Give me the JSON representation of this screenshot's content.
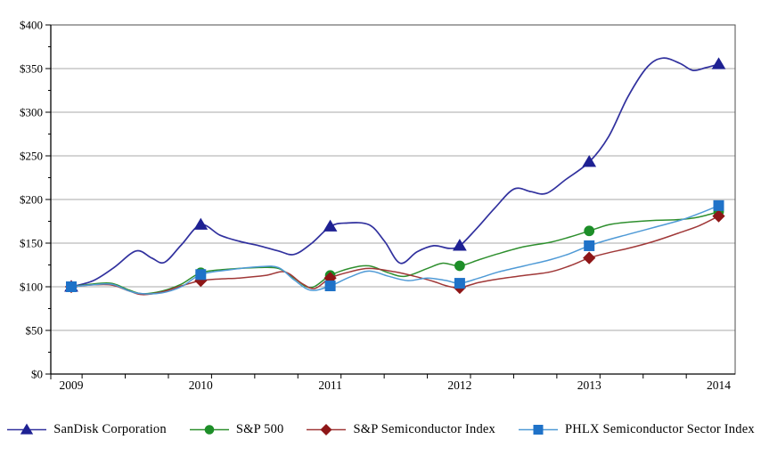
{
  "figure": {
    "background": "#ffffff",
    "kind": "5-year cumulative total return comparison line chart"
  },
  "colors": {
    "gridline": "#a8a8a8",
    "plot_border": "#4d4d4d",
    "axis": "#000000",
    "text": "#000000"
  },
  "chart_data": {
    "type": "line",
    "title": "",
    "xlabel": "",
    "ylabel": "",
    "categories": [
      "2009",
      "2010",
      "2011",
      "2012",
      "2013",
      "2014"
    ],
    "x_axis": {
      "tick_labels": [
        "2009",
        "2010",
        "2011",
        "2012",
        "2013",
        "2014"
      ],
      "minor_ticks": "every 4 months"
    },
    "y_axis": {
      "tick_labels": [
        "$0",
        "$50",
        "$100",
        "$150",
        "$200",
        "$250",
        "$300",
        "$350",
        "$400"
      ],
      "min": 0,
      "max": 400,
      "major_interval": 50,
      "minor_tick_interval": 25,
      "unit": "$"
    },
    "grid": "horizontal major gridlines",
    "legend_position": "bottom",
    "series": [
      {
        "name": "SanDisk Corporation",
        "marker": "triangle",
        "line_color": "#31319e",
        "marker_color": "#1e2193",
        "values": [
          100,
          171,
          169,
          147,
          243,
          355
        ],
        "curve_points": [
          [
            0,
            100
          ],
          [
            0.17,
            107
          ],
          [
            0.33,
            122
          ],
          [
            0.5,
            141
          ],
          [
            0.62,
            133
          ],
          [
            0.72,
            128
          ],
          [
            0.85,
            148
          ],
          [
            1,
            171
          ],
          [
            1.15,
            159
          ],
          [
            1.3,
            152
          ],
          [
            1.45,
            147
          ],
          [
            1.6,
            141
          ],
          [
            1.72,
            137
          ],
          [
            1.85,
            149
          ],
          [
            2,
            169
          ],
          [
            2.12,
            173
          ],
          [
            2.3,
            171
          ],
          [
            2.42,
            152
          ],
          [
            2.54,
            127
          ],
          [
            2.67,
            140
          ],
          [
            2.8,
            147
          ],
          [
            2.92,
            144
          ],
          [
            3,
            147
          ],
          [
            3.12,
            165
          ],
          [
            3.27,
            190
          ],
          [
            3.42,
            212
          ],
          [
            3.55,
            209
          ],
          [
            3.67,
            207
          ],
          [
            3.82,
            223
          ],
          [
            4,
            243
          ],
          [
            4.15,
            272
          ],
          [
            4.3,
            318
          ],
          [
            4.45,
            352
          ],
          [
            4.57,
            362
          ],
          [
            4.7,
            356
          ],
          [
            4.8,
            348
          ],
          [
            4.9,
            351
          ],
          [
            5,
            355
          ]
        ]
      },
      {
        "name": "S&P 500",
        "marker": "circle",
        "line_color": "#2e8f2e",
        "marker_color": "#1d8e28",
        "values": [
          100,
          116,
          113,
          124,
          164,
          186
        ],
        "curve_points": [
          [
            0,
            100
          ],
          [
            0.15,
            103
          ],
          [
            0.31,
            104
          ],
          [
            0.45,
            96
          ],
          [
            0.55,
            92
          ],
          [
            0.7,
            95
          ],
          [
            0.85,
            103
          ],
          [
            1,
            116
          ],
          [
            1.2,
            120
          ],
          [
            1.45,
            122
          ],
          [
            1.6,
            121
          ],
          [
            1.72,
            110
          ],
          [
            1.85,
            99
          ],
          [
            2,
            113
          ],
          [
            2.15,
            121
          ],
          [
            2.3,
            124
          ],
          [
            2.45,
            116
          ],
          [
            2.58,
            112
          ],
          [
            2.75,
            121
          ],
          [
            2.87,
            127
          ],
          [
            3,
            124
          ],
          [
            3.15,
            131
          ],
          [
            3.3,
            138
          ],
          [
            3.5,
            146
          ],
          [
            3.7,
            151
          ],
          [
            3.85,
            157
          ],
          [
            4,
            164
          ],
          [
            4.15,
            171
          ],
          [
            4.3,
            174
          ],
          [
            4.5,
            176
          ],
          [
            4.7,
            177
          ],
          [
            4.85,
            180
          ],
          [
            5,
            186
          ]
        ]
      },
      {
        "name": "S&P Semiconductor Index",
        "marker": "diamond",
        "line_color": "#a03838",
        "marker_color": "#8e1617",
        "values": [
          100,
          107,
          110,
          99,
          133,
          181
        ],
        "curve_points": [
          [
            0,
            100
          ],
          [
            0.15,
            102
          ],
          [
            0.31,
            102
          ],
          [
            0.45,
            95
          ],
          [
            0.55,
            91
          ],
          [
            0.7,
            94
          ],
          [
            0.85,
            101
          ],
          [
            1,
            107
          ],
          [
            1.15,
            109
          ],
          [
            1.3,
            110
          ],
          [
            1.5,
            113
          ],
          [
            1.65,
            117
          ],
          [
            1.78,
            104
          ],
          [
            1.88,
            98
          ],
          [
            2,
            110
          ],
          [
            2.15,
            117
          ],
          [
            2.3,
            121
          ],
          [
            2.5,
            117
          ],
          [
            2.65,
            112
          ],
          [
            2.8,
            106
          ],
          [
            2.9,
            101
          ],
          [
            3,
            99
          ],
          [
            3.15,
            105
          ],
          [
            3.3,
            109
          ],
          [
            3.5,
            113
          ],
          [
            3.7,
            117
          ],
          [
            3.85,
            124
          ],
          [
            4,
            133
          ],
          [
            4.15,
            139
          ],
          [
            4.3,
            144
          ],
          [
            4.5,
            152
          ],
          [
            4.7,
            162
          ],
          [
            4.85,
            170
          ],
          [
            5,
            181
          ]
        ]
      },
      {
        "name": "PHLX Semiconductor Sector Index",
        "marker": "square",
        "line_color": "#4f9ad6",
        "marker_color": "#1f72c8",
        "values": [
          100,
          114,
          101,
          104,
          147,
          193
        ],
        "curve_points": [
          [
            0,
            100
          ],
          [
            0.15,
            102
          ],
          [
            0.31,
            103
          ],
          [
            0.45,
            95
          ],
          [
            0.55,
            92
          ],
          [
            0.7,
            93
          ],
          [
            0.85,
            100
          ],
          [
            1,
            114
          ],
          [
            1.2,
            119
          ],
          [
            1.45,
            123
          ],
          [
            1.6,
            122
          ],
          [
            1.72,
            108
          ],
          [
            1.85,
            96
          ],
          [
            2,
            101
          ],
          [
            2.15,
            111
          ],
          [
            2.3,
            118
          ],
          [
            2.45,
            112
          ],
          [
            2.6,
            107
          ],
          [
            2.75,
            110
          ],
          [
            2.9,
            107
          ],
          [
            3,
            104
          ],
          [
            3.15,
            110
          ],
          [
            3.3,
            117
          ],
          [
            3.5,
            124
          ],
          [
            3.7,
            131
          ],
          [
            3.85,
            138
          ],
          [
            4,
            147
          ],
          [
            4.15,
            154
          ],
          [
            4.3,
            160
          ],
          [
            4.5,
            168
          ],
          [
            4.7,
            176
          ],
          [
            4.85,
            184
          ],
          [
            5,
            193
          ]
        ]
      }
    ]
  }
}
